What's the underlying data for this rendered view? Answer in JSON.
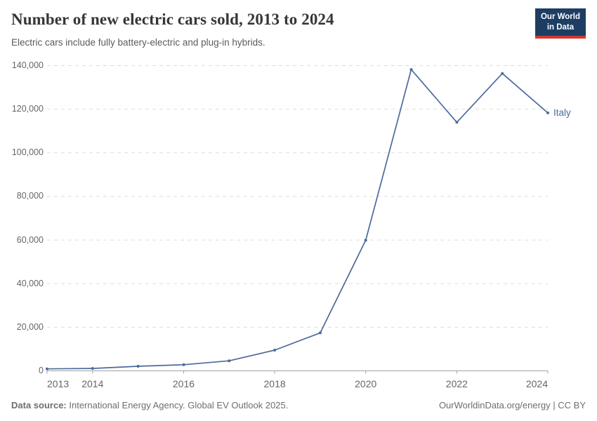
{
  "header": {
    "title": "Number of new electric cars sold, 2013 to 2024",
    "subtitle": "Electric cars include fully battery-electric and plug-in hybrids.",
    "logo": {
      "line1": "Our World",
      "line2": "in Data"
    }
  },
  "chart_data": {
    "type": "line",
    "title": "Number of new electric cars sold, 2013 to 2024",
    "x": [
      2013,
      2014,
      2015,
      2016,
      2017,
      2018,
      2019,
      2020,
      2021,
      2022,
      2023,
      2024
    ],
    "series": [
      {
        "name": "Italy",
        "values": [
          900,
          1100,
          2100,
          2800,
          4600,
          9500,
          17400,
          59900,
          138200,
          114000,
          136400,
          118300
        ]
      }
    ],
    "xlabel": "",
    "ylabel": "",
    "ylim": [
      0,
      140000
    ],
    "y_ticks": [
      0,
      20000,
      40000,
      60000,
      80000,
      100000,
      120000,
      140000
    ],
    "x_tick_years": [
      2013,
      2014,
      2016,
      2018,
      2020,
      2022,
      2024
    ],
    "grid": "horizontal-dashed",
    "legend_position": "end-of-line-label",
    "markers": "dot"
  },
  "footer": {
    "source_label": "Data source:",
    "source_text": " International Energy Agency. Global EV Outlook 2025.",
    "right_text": "OurWorldinData.org/energy | CC BY"
  },
  "colors": {
    "line": "#4C6A9C",
    "series_label": "#4C6A9C",
    "logo_bg": "#1d3d63",
    "logo_red": "#d7382e",
    "grid": "#dddddd",
    "axis": "#a1a1a1",
    "axis_text": "#666666",
    "title_text": "#363636"
  }
}
